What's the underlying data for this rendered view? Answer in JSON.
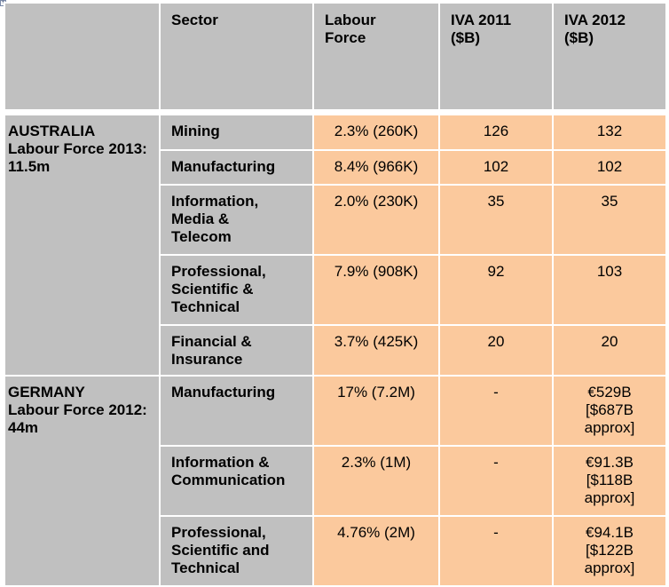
{
  "header": {
    "col0": "",
    "sector": "Sector",
    "labour_force": "Labour Force",
    "iva_2011": "IVA 2011 ($B)",
    "iva_2012": "IVA 2012 ($B)"
  },
  "australia": {
    "country": "AUSTRALIA",
    "labour_force_note": "Labour Force 2013: 11.5m",
    "rows": [
      {
        "sector": "Mining",
        "labour_force": "2.3% (260K)",
        "iva_2011": "126",
        "iva_2012": "132"
      },
      {
        "sector": "Manufacturing",
        "labour_force": "8.4% (966K)",
        "iva_2011": "102",
        "iva_2012": "102"
      },
      {
        "sector": "Information, Media & Telecom",
        "labour_force": "2.0% (230K)",
        "iva_2011": "35",
        "iva_2012": "35"
      },
      {
        "sector": "Professional, Scientific & Technical",
        "labour_force": "7.9% (908K)",
        "iva_2011": "92",
        "iva_2012": "103"
      },
      {
        "sector": "Financial & Insurance",
        "labour_force": "3.7% (425K)",
        "iva_2011": "20",
        "iva_2012": "20"
      }
    ]
  },
  "germany": {
    "country": "GERMANY",
    "labour_force_note": "Labour Force 2012: 44m",
    "rows": [
      {
        "sector": "Manufacturing",
        "labour_force": "17% (7.2M)",
        "iva_2011": "-",
        "iva_2012": "€529B [$687B approx]"
      },
      {
        "sector": "Information & Communication",
        "labour_force": "2.3% (1M)",
        "iva_2011": "-",
        "iva_2012": "€91.3B [$118B approx]"
      },
      {
        "sector": "Professional, Scientific and Technical",
        "labour_force": "4.76% (2M)",
        "iva_2011": "-",
        "iva_2012": "€94.1B [$122B approx]"
      }
    ]
  },
  "colors": {
    "grey": "#c0c0c0",
    "orange": "#fbc99d"
  },
  "icons": {
    "corner": "expand-icon"
  }
}
